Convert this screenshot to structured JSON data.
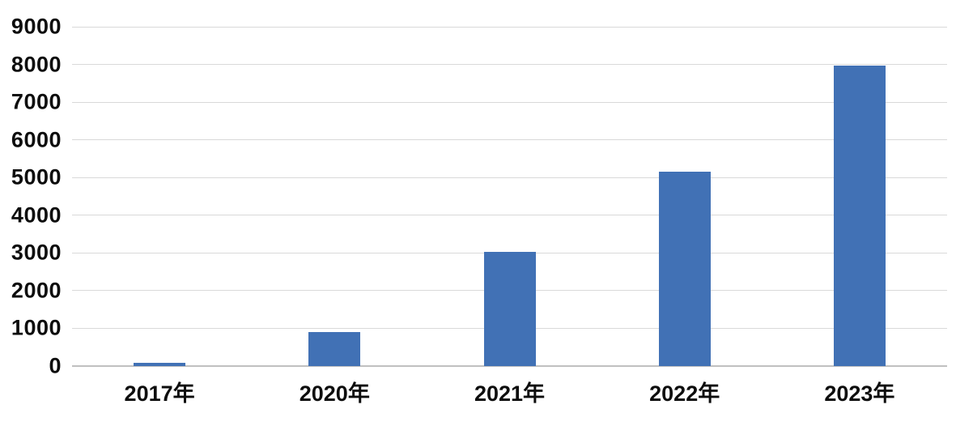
{
  "chart_data": {
    "type": "bar",
    "title": "",
    "xlabel": "",
    "ylabel": "",
    "categories": [
      "2017年",
      "2020年",
      "2021年",
      "2022年",
      "2023年"
    ],
    "values": [
      80,
      900,
      3020,
      5150,
      7960
    ],
    "ylim": [
      0,
      9000
    ],
    "yticks": [
      0,
      1000,
      2000,
      3000,
      4000,
      5000,
      6000,
      7000,
      8000,
      9000
    ],
    "grid": true,
    "legend": false,
    "colors": {
      "bar_fill": "#4171b5",
      "gridline": "#d9d9d9",
      "axis_baseline": "#c0c0c0",
      "tick_label": "#0d0d0d",
      "background": "#ffffff"
    }
  }
}
